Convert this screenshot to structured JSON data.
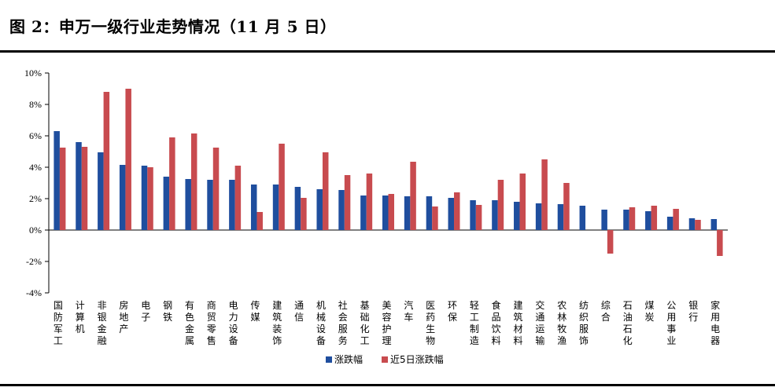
{
  "header": {
    "title": "图 2：申万一级行业走势情况（11 月 5 日）"
  },
  "colors": {
    "series_1": "#1F4E9E",
    "series_2": "#C84B4F"
  },
  "chart_data": {
    "type": "bar",
    "title": "",
    "xlabel": "",
    "ylabel": "",
    "ylim": [
      -4,
      10
    ],
    "yticks": [
      10,
      8,
      6,
      4,
      2,
      0,
      -2,
      -4
    ],
    "ytick_labels": [
      "10%",
      "8%",
      "6%",
      "4%",
      "2%",
      "0%",
      "-2%",
      "-4%"
    ],
    "grid": false,
    "legend_position": "bottom-center",
    "categories": [
      "国防军工",
      "计算机",
      "非银金融",
      "房地产",
      "电子",
      "钢铁",
      "有色金属",
      "商贸零售",
      "电力设备",
      "传媒",
      "建筑装饰",
      "通信",
      "机械设备",
      "社会服务",
      "基础化工",
      "美容护理",
      "汽车",
      "医药生物",
      "环保",
      "轻工制造",
      "食品饮料",
      "建筑材料",
      "交通运输",
      "农林牧渔",
      "纺织服饰",
      "综合",
      "石油石化",
      "煤炭",
      "公用事业",
      "银行",
      "家用电器"
    ],
    "series": [
      {
        "name": "涨跌幅",
        "values": [
          6.3,
          5.6,
          4.95,
          4.15,
          4.1,
          3.4,
          3.25,
          3.2,
          3.2,
          2.9,
          2.9,
          2.75,
          2.6,
          2.55,
          2.2,
          2.2,
          2.15,
          2.15,
          2.05,
          1.9,
          1.9,
          1.8,
          1.7,
          1.65,
          1.55,
          1.3,
          1.3,
          1.2,
          0.85,
          0.75,
          0.7
        ]
      },
      {
        "name": "近5日涨跌幅",
        "values": [
          5.25,
          5.3,
          8.8,
          9.0,
          4.0,
          5.9,
          6.15,
          5.25,
          4.1,
          1.15,
          5.5,
          2.05,
          4.95,
          3.5,
          3.6,
          2.3,
          4.35,
          1.5,
          2.4,
          1.6,
          3.2,
          3.6,
          4.5,
          3.0,
          0.0,
          -1.5,
          1.45,
          1.55,
          1.35,
          0.65,
          -1.65
        ]
      }
    ]
  }
}
